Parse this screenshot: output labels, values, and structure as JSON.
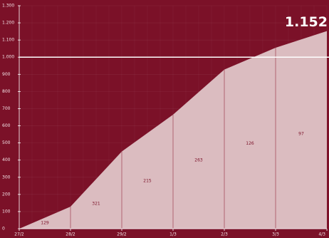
{
  "chart_data": {
    "type": "area",
    "categories": [
      "27/2",
      "28/2",
      "29/2",
      "1/3",
      "2/3",
      "3/3",
      "4/3"
    ],
    "values": [
      0,
      129,
      450,
      665,
      928,
      1055,
      1152
    ],
    "increments": [
      129,
      321,
      215,
      263,
      126,
      97
    ],
    "annotation": "1.152",
    "reference_line": 1000,
    "ylim": [
      0,
      1300
    ],
    "yticks": [
      0,
      100,
      200,
      300,
      400,
      500,
      600,
      700,
      800,
      900,
      {
        "value": 1000,
        "label": "1.000"
      },
      {
        "value": 1100,
        "label": "1.100"
      },
      {
        "value": 1200,
        "label": "1.200"
      },
      {
        "value": 1300,
        "label": "1.300"
      }
    ],
    "grid": true,
    "color": "#dbbcc0",
    "background": "#7b1128"
  }
}
